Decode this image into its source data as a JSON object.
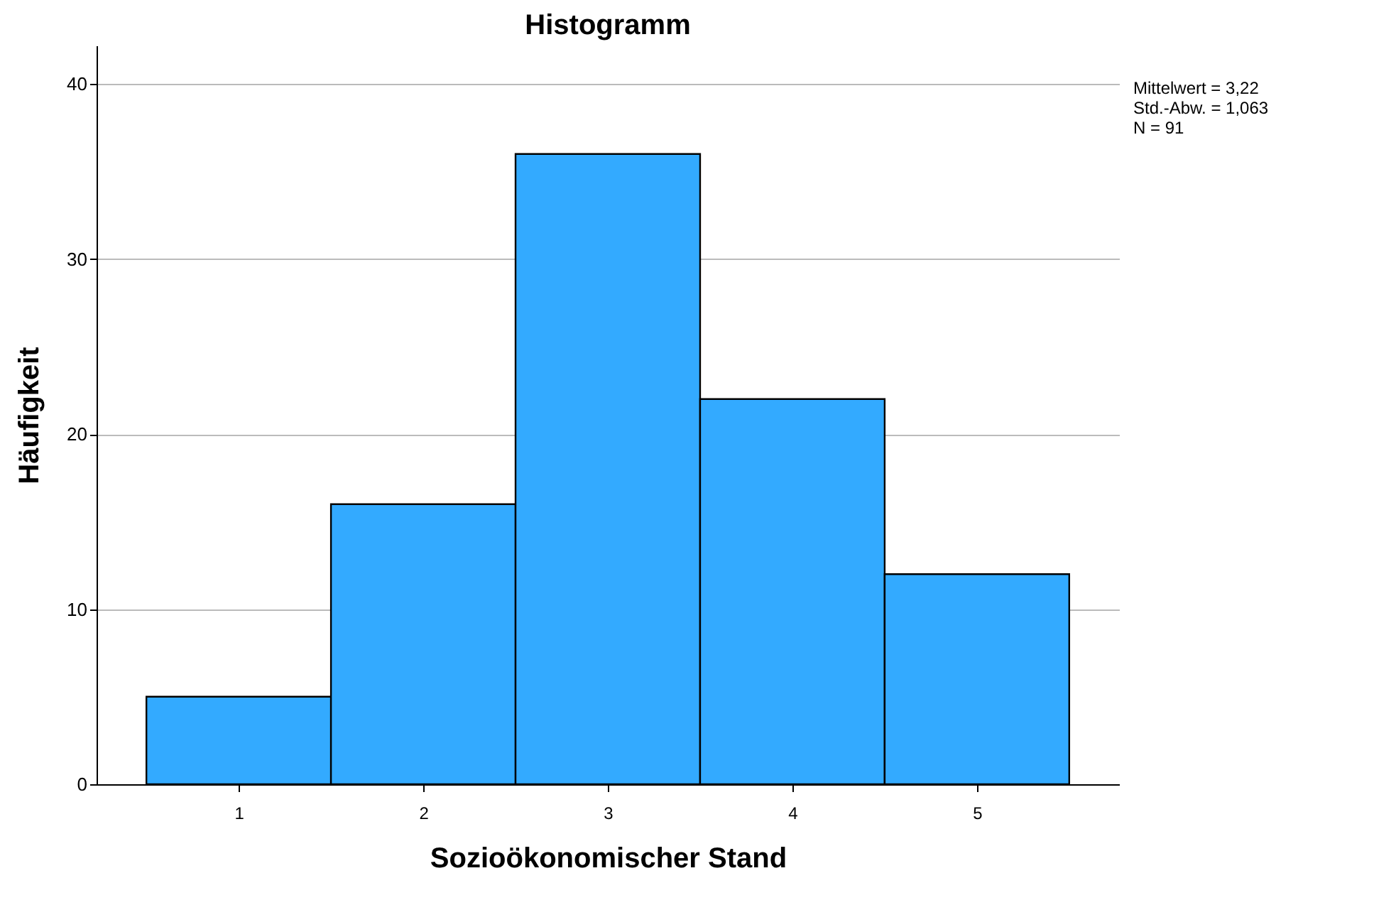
{
  "chart_data": {
    "type": "histogram",
    "title": "Histogramm",
    "xlabel": "Sozioökonomischer Stand",
    "ylabel": "Häufigkeit",
    "bins": [
      0.5,
      1.5,
      2.5,
      3.5,
      4.5,
      5.5
    ],
    "values": [
      5,
      16,
      36,
      22,
      12
    ],
    "color": "#33aaff",
    "xlim": [
      0.23,
      5.77
    ],
    "xticks": [
      1,
      2,
      3,
      4,
      5
    ],
    "ylim": [
      0,
      42.2
    ],
    "yticks": [
      0,
      10,
      20,
      30,
      40
    ],
    "grid": "y",
    "annotations": [
      "Mittelwert = 3,22",
      "Std.-Abw. = 1,063",
      "N = 91"
    ]
  }
}
